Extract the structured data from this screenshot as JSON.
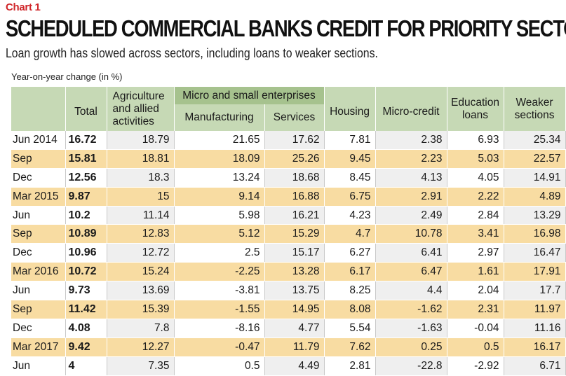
{
  "chart_label": "Chart 1",
  "title": "SCHEDULED COMMERCIAL BANKS CREDIT FOR PRIORITY SECTOR",
  "subtitle": "Loan growth has slowed across sectors, including loans to weaker sections.",
  "unit_note": "Year-on-year change (in %)",
  "headers": {
    "total": "Total",
    "agriculture": "Agriculture and allied activities",
    "msme_group": "Micro and small enterprises",
    "manufacturing": "Manufacturing",
    "services": "Services",
    "housing": "Housing",
    "micro_credit": "Micro-credit",
    "education": "Education loans",
    "weaker": "Weaker sections"
  },
  "colors": {
    "header_bg": "#c6d9b5",
    "group_header_bg": "#a6c28e",
    "alt_row_bg": "#f8dca2",
    "chart_label_red": "#d0262a"
  },
  "rows": [
    {
      "period": "Jun 2014",
      "total": "16.72",
      "agriculture": "18.79",
      "manufacturing": "21.65",
      "services": "17.62",
      "housing": "7.81",
      "micro_credit": "2.38",
      "education": "6.93",
      "weaker": "25.34"
    },
    {
      "period": "Sep",
      "total": "15.81",
      "agriculture": "18.81",
      "manufacturing": "18.09",
      "services": "25.26",
      "housing": "9.45",
      "micro_credit": "2.23",
      "education": "5.03",
      "weaker": "22.57"
    },
    {
      "period": "Dec",
      "total": "12.56",
      "agriculture": "18.3",
      "manufacturing": "13.24",
      "services": "18.68",
      "housing": "8.45",
      "micro_credit": "4.13",
      "education": "4.05",
      "weaker": "14.91"
    },
    {
      "period": "Mar 2015",
      "total": "9.87",
      "agriculture": "15",
      "manufacturing": "9.14",
      "services": "16.88",
      "housing": "6.75",
      "micro_credit": "2.91",
      "education": "2.22",
      "weaker": "4.89"
    },
    {
      "period": "Jun",
      "total": "10.2",
      "agriculture": "11.14",
      "manufacturing": "5.98",
      "services": "16.21",
      "housing": "4.23",
      "micro_credit": "2.49",
      "education": "2.84",
      "weaker": "13.29"
    },
    {
      "period": "Sep",
      "total": "10.89",
      "agriculture": "12.83",
      "manufacturing": "5.12",
      "services": "15.29",
      "housing": "4.7",
      "micro_credit": "10.78",
      "education": "3.41",
      "weaker": "16.98"
    },
    {
      "period": "Dec",
      "total": "10.96",
      "agriculture": "12.72",
      "manufacturing": "2.5",
      "services": "15.17",
      "housing": "6.27",
      "micro_credit": "6.41",
      "education": "2.97",
      "weaker": "16.47"
    },
    {
      "period": "Mar 2016",
      "total": "10.72",
      "agriculture": "15.24",
      "manufacturing": "-2.25",
      "services": "13.28",
      "housing": "6.17",
      "micro_credit": "6.47",
      "education": "1.61",
      "weaker": "17.91"
    },
    {
      "period": "Jun",
      "total": "9.73",
      "agriculture": "13.69",
      "manufacturing": "-3.81",
      "services": "13.75",
      "housing": "8.25",
      "micro_credit": "4.4",
      "education": "2.04",
      "weaker": "17.7"
    },
    {
      "period": "Sep",
      "total": "11.42",
      "agriculture": "15.39",
      "manufacturing": "-1.55",
      "services": "14.95",
      "housing": "8.08",
      "micro_credit": "-1.62",
      "education": "2.31",
      "weaker": "11.97"
    },
    {
      "period": "Dec",
      "total": "4.08",
      "agriculture": "7.8",
      "manufacturing": "-8.16",
      "services": "4.77",
      "housing": "5.54",
      "micro_credit": "-1.63",
      "education": "-0.04",
      "weaker": "11.16"
    },
    {
      "period": "Mar 2017",
      "total": "9.42",
      "agriculture": "12.27",
      "manufacturing": "-0.47",
      "services": "11.79",
      "housing": "7.62",
      "micro_credit": "0.25",
      "education": "0.5",
      "weaker": "16.17"
    },
    {
      "period": "Jun",
      "total": "4",
      "agriculture": "7.35",
      "manufacturing": "0.5",
      "services": "4.49",
      "housing": "2.81",
      "micro_credit": "-22.8",
      "education": "-2.92",
      "weaker": "6.71"
    }
  ]
}
